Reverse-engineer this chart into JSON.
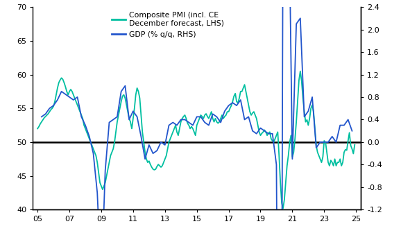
{
  "legend1": "Composite PMI (incl. CE\nDecember forecast, LHS)",
  "legend2": "GDP (% q/q, RHS)",
  "pmi_color": "#00BFA0",
  "gdp_color": "#2255CC",
  "hline_color": "black",
  "hline_y": 50,
  "ylim_left": [
    40,
    70
  ],
  "ylim_right": [
    -1.2,
    2.4
  ],
  "yticks_left": [
    40,
    45,
    50,
    55,
    60,
    65,
    70
  ],
  "yticks_right": [
    -1.2,
    -0.8,
    -0.4,
    0.0,
    0.4,
    0.8,
    1.2,
    1.6,
    2.0,
    2.4
  ],
  "xticks": [
    2005,
    2007,
    2009,
    2011,
    2013,
    2015,
    2017,
    2019,
    2021,
    2023,
    2025
  ],
  "xticklabels": [
    "05",
    "07",
    "09",
    "11",
    "13",
    "15",
    "17",
    "19",
    "21",
    "23",
    "25"
  ],
  "xlim": [
    2004.7,
    2025.3
  ],
  "pmi_dates": [
    2005.0,
    2005.083,
    2005.167,
    2005.25,
    2005.333,
    2005.417,
    2005.5,
    2005.583,
    2005.667,
    2005.75,
    2005.833,
    2005.917,
    2006.0,
    2006.083,
    2006.167,
    2006.25,
    2006.333,
    2006.417,
    2006.5,
    2006.583,
    2006.667,
    2006.75,
    2006.833,
    2006.917,
    2007.0,
    2007.083,
    2007.167,
    2007.25,
    2007.333,
    2007.417,
    2007.5,
    2007.583,
    2007.667,
    2007.75,
    2007.833,
    2007.917,
    2008.0,
    2008.083,
    2008.167,
    2008.25,
    2008.333,
    2008.417,
    2008.5,
    2008.583,
    2008.667,
    2008.75,
    2008.833,
    2008.917,
    2009.0,
    2009.083,
    2009.167,
    2009.25,
    2009.333,
    2009.417,
    2009.5,
    2009.583,
    2009.667,
    2009.75,
    2009.833,
    2009.917,
    2010.0,
    2010.083,
    2010.167,
    2010.25,
    2010.333,
    2010.417,
    2010.5,
    2010.583,
    2010.667,
    2010.75,
    2010.833,
    2010.917,
    2011.0,
    2011.083,
    2011.167,
    2011.25,
    2011.333,
    2011.417,
    2011.5,
    2011.583,
    2011.667,
    2011.75,
    2011.833,
    2011.917,
    2012.0,
    2012.083,
    2012.167,
    2012.25,
    2012.333,
    2012.417,
    2012.5,
    2012.583,
    2012.667,
    2012.75,
    2012.833,
    2012.917,
    2013.0,
    2013.083,
    2013.167,
    2013.25,
    2013.333,
    2013.417,
    2013.5,
    2013.583,
    2013.667,
    2013.75,
    2013.833,
    2013.917,
    2014.0,
    2014.083,
    2014.167,
    2014.25,
    2014.333,
    2014.417,
    2014.5,
    2014.583,
    2014.667,
    2014.75,
    2014.833,
    2014.917,
    2015.0,
    2015.083,
    2015.167,
    2015.25,
    2015.333,
    2015.417,
    2015.5,
    2015.583,
    2015.667,
    2015.75,
    2015.833,
    2015.917,
    2016.0,
    2016.083,
    2016.167,
    2016.25,
    2016.333,
    2016.417,
    2016.5,
    2016.583,
    2016.667,
    2016.75,
    2016.833,
    2016.917,
    2017.0,
    2017.083,
    2017.167,
    2017.25,
    2017.333,
    2017.417,
    2017.5,
    2017.583,
    2017.667,
    2017.75,
    2017.833,
    2017.917,
    2018.0,
    2018.083,
    2018.167,
    2018.25,
    2018.333,
    2018.417,
    2018.5,
    2018.583,
    2018.667,
    2018.75,
    2018.833,
    2018.917,
    2019.0,
    2019.083,
    2019.167,
    2019.25,
    2019.333,
    2019.417,
    2019.5,
    2019.583,
    2019.667,
    2019.75,
    2019.833,
    2019.917,
    2020.0,
    2020.083,
    2020.167,
    2020.25,
    2020.333,
    2020.417,
    2020.5,
    2020.583,
    2020.667,
    2020.75,
    2020.833,
    2020.917,
    2021.0,
    2021.083,
    2021.167,
    2021.25,
    2021.333,
    2021.417,
    2021.5,
    2021.583,
    2021.667,
    2021.75,
    2021.833,
    2021.917,
    2022.0,
    2022.083,
    2022.167,
    2022.25,
    2022.333,
    2022.417,
    2022.5,
    2022.583,
    2022.667,
    2022.75,
    2022.833,
    2022.917,
    2023.0,
    2023.083,
    2023.167,
    2023.25,
    2023.333,
    2023.417,
    2023.5,
    2023.583,
    2023.667,
    2023.75,
    2023.833,
    2023.917,
    2024.0,
    2024.083,
    2024.167,
    2024.25,
    2024.333,
    2024.417,
    2024.5,
    2024.583,
    2024.667,
    2024.75,
    2024.833,
    2024.917
  ],
  "pmi_values": [
    52.0,
    52.3,
    52.7,
    53.0,
    53.3,
    53.6,
    53.8,
    54.0,
    54.2,
    54.5,
    54.8,
    55.0,
    55.3,
    56.0,
    57.0,
    58.0,
    58.8,
    59.2,
    59.5,
    59.3,
    58.8,
    58.2,
    57.5,
    57.0,
    57.5,
    57.8,
    57.5,
    57.0,
    56.5,
    56.0,
    55.5,
    55.0,
    54.5,
    54.0,
    53.5,
    52.5,
    52.0,
    51.5,
    51.0,
    50.5,
    50.0,
    49.5,
    49.0,
    48.5,
    48.0,
    47.0,
    45.5,
    44.0,
    43.5,
    43.0,
    43.5,
    44.0,
    45.0,
    46.0,
    47.0,
    48.0,
    48.5,
    49.0,
    50.0,
    51.5,
    53.0,
    54.0,
    55.0,
    56.0,
    56.8,
    57.0,
    56.5,
    55.5,
    54.5,
    53.5,
    53.0,
    52.0,
    53.5,
    55.0,
    57.0,
    58.0,
    57.5,
    56.5,
    54.0,
    51.5,
    50.0,
    48.5,
    47.5,
    47.0,
    47.2,
    46.7,
    46.3,
    46.0,
    45.9,
    46.0,
    46.4,
    46.7,
    46.5,
    46.3,
    46.5,
    47.0,
    47.5,
    48.0,
    49.0,
    50.0,
    50.5,
    51.0,
    51.5,
    52.0,
    52.5,
    51.5,
    51.0,
    52.0,
    53.0,
    53.5,
    53.8,
    54.0,
    53.5,
    52.8,
    52.5,
    52.0,
    52.3,
    52.0,
    51.5,
    51.0,
    52.5,
    53.0,
    53.5,
    54.0,
    53.8,
    53.5,
    54.0,
    54.2,
    53.8,
    53.5,
    54.0,
    54.5,
    53.5,
    53.0,
    53.5,
    53.0,
    52.8,
    53.0,
    53.5,
    54.0,
    53.5,
    53.8,
    54.0,
    54.5,
    54.5,
    55.0,
    55.4,
    56.0,
    56.8,
    57.2,
    56.0,
    55.8,
    56.5,
    57.5,
    57.5,
    58.0,
    58.5,
    57.5,
    56.5,
    55.5,
    54.5,
    54.0,
    54.3,
    54.5,
    54.0,
    53.5,
    52.5,
    51.5,
    51.0,
    51.3,
    51.5,
    51.8,
    51.5,
    51.0,
    51.3,
    51.5,
    50.5,
    50.2,
    50.0,
    50.5,
    51.0,
    51.5,
    48.0,
    44.0,
    41.0,
    40.2,
    41.5,
    44.0,
    46.5,
    48.0,
    50.0,
    51.0,
    47.8,
    48.5,
    50.5,
    53.0,
    56.0,
    59.2,
    60.5,
    59.0,
    56.5,
    54.5,
    53.0,
    53.3,
    52.5,
    53.5,
    55.0,
    55.5,
    54.5,
    52.0,
    49.5,
    48.5,
    48.0,
    47.5,
    47.0,
    47.8,
    50.2,
    50.0,
    48.5,
    47.0,
    46.5,
    47.3,
    47.0,
    46.5,
    47.5,
    46.5,
    47.0,
    47.0,
    47.5,
    46.5,
    47.0,
    48.5,
    48.9,
    48.8,
    50.2,
    51.4,
    49.5,
    49.0,
    48.3,
    49.6
  ],
  "gdp_dates": [
    2005.25,
    2005.5,
    2005.75,
    2006.0,
    2006.25,
    2006.5,
    2006.75,
    2007.0,
    2007.25,
    2007.5,
    2007.75,
    2008.0,
    2008.25,
    2008.5,
    2008.75,
    2009.0,
    2009.25,
    2009.5,
    2009.75,
    2010.0,
    2010.25,
    2010.5,
    2010.75,
    2011.0,
    2011.25,
    2011.5,
    2011.75,
    2012.0,
    2012.25,
    2012.5,
    2012.75,
    2013.0,
    2013.25,
    2013.5,
    2013.75,
    2014.0,
    2014.25,
    2014.5,
    2014.75,
    2015.0,
    2015.25,
    2015.5,
    2015.75,
    2016.0,
    2016.25,
    2016.5,
    2016.75,
    2017.0,
    2017.25,
    2017.5,
    2017.75,
    2018.0,
    2018.25,
    2018.5,
    2018.75,
    2019.0,
    2019.25,
    2019.5,
    2019.75,
    2020.0,
    2020.25,
    2020.5,
    2020.75,
    2021.0,
    2021.25,
    2021.5,
    2021.75,
    2022.0,
    2022.25,
    2022.5,
    2022.75,
    2023.0,
    2023.25,
    2023.5,
    2023.75,
    2024.0,
    2024.25,
    2024.5,
    2024.75
  ],
  "gdp_values": [
    0.45,
    0.5,
    0.6,
    0.65,
    0.75,
    0.9,
    0.85,
    0.8,
    0.75,
    0.8,
    0.45,
    0.3,
    0.1,
    -0.2,
    -0.9,
    -2.5,
    -0.5,
    0.35,
    0.4,
    0.45,
    0.9,
    1.0,
    0.4,
    0.55,
    0.45,
    0.1,
    -0.3,
    -0.05,
    -0.2,
    -0.15,
    0.0,
    -0.05,
    0.3,
    0.35,
    0.3,
    0.4,
    0.4,
    0.35,
    0.3,
    0.45,
    0.45,
    0.35,
    0.3,
    0.5,
    0.45,
    0.35,
    0.55,
    0.65,
    0.7,
    0.65,
    0.75,
    0.4,
    0.45,
    0.2,
    0.15,
    0.25,
    0.2,
    0.15,
    0.15,
    -0.4,
    -11.5,
    12.4,
    4.9,
    -0.3,
    2.1,
    2.2,
    0.45,
    0.55,
    0.8,
    -0.1,
    0.0,
    0.0,
    0.0,
    0.1,
    0.0,
    0.3,
    0.3,
    0.4,
    0.2
  ],
  "background_color": "#ffffff",
  "spine_color": "#000000",
  "linewidth_pmi": 1.3,
  "linewidth_gdp": 1.3,
  "linewidth_hline": 1.8
}
